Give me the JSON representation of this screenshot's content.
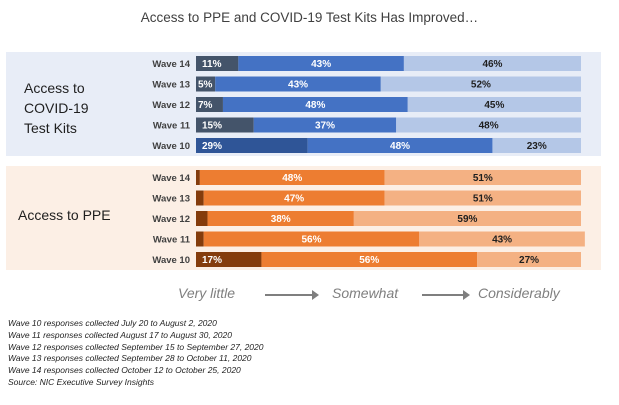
{
  "title": "Access to PPE and COVID-19 Test Kits Has Improved…",
  "groups": {
    "covid": {
      "label": "Access to\nCOVID-19\nTest Kits"
    },
    "ppe": {
      "label": "Access to PPE"
    }
  },
  "legend": {
    "low": "Very little",
    "mid": "Somewhat",
    "high": "Considerably"
  },
  "footnotes": [
    "Wave 10 responses collected July 20 to August 2, 2020",
    "Wave 11 responses collected August 17 to August 30, 2020",
    "Wave 12 responses collected September 15 to September 27, 2020",
    "Wave 13 responses collected September 28 to October 11, 2020",
    "Wave 14 responses collected October 12 to October 25, 2020",
    "Source: NIC Executive Survey Insights"
  ],
  "colors": {
    "covid_band_bg": "#e8edf7",
    "ppe_band_bg": "#fcefe5",
    "covid": {
      "very_little": "#44546a",
      "somewhat": "#4472c4",
      "considerably": "#b4c7e7"
    },
    "covid_wave10": {
      "very_little": "#2f5597",
      "somewhat": "#4472c4",
      "considerably": "#b4c7e7"
    },
    "ppe": {
      "very_little": "#843c0c",
      "somewhat": "#ed7d31",
      "considerably": "#f4b183"
    }
  },
  "chart_data": [
    {
      "type": "bar",
      "orientation": "horizontal",
      "stacked": true,
      "group": "Access to COVID-19 Test Kits",
      "categories": [
        "Wave 14",
        "Wave 13",
        "Wave 12",
        "Wave 11",
        "Wave 10"
      ],
      "series": [
        {
          "name": "Very little",
          "values": [
            11,
            5,
            7,
            15,
            29
          ]
        },
        {
          "name": "Somewhat",
          "values": [
            43,
            43,
            48,
            37,
            48
          ]
        },
        {
          "name": "Considerably",
          "values": [
            46,
            52,
            45,
            48,
            23
          ]
        }
      ],
      "value_format": "percent",
      "xlim": [
        0,
        100
      ]
    },
    {
      "type": "bar",
      "orientation": "horizontal",
      "stacked": true,
      "group": "Access to PPE",
      "categories": [
        "Wave 14",
        "Wave 13",
        "Wave 12",
        "Wave 11",
        "Wave 10"
      ],
      "series": [
        {
          "name": "Very little",
          "values": [
            1,
            2,
            3,
            2,
            17
          ]
        },
        {
          "name": "Somewhat",
          "values": [
            48,
            47,
            38,
            56,
            56
          ]
        },
        {
          "name": "Considerably",
          "values": [
            51,
            51,
            59,
            43,
            27
          ]
        }
      ],
      "value_format": "percent",
      "xlim": [
        0,
        100
      ]
    }
  ]
}
